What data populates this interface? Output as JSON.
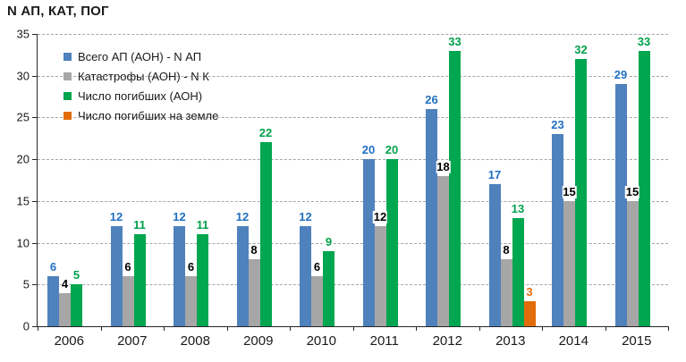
{
  "title": "N АП, КАТ, ПОГ",
  "legend": {
    "position": "upper-left-inside",
    "items": [
      {
        "label": "Всего АП (АОН) - N АП",
        "color": "#4F81BD"
      },
      {
        "label": "Катастрофы (АОН) - N К",
        "color": "#A6A6A6"
      },
      {
        "label": "Число погибших (АОН)",
        "color": "#00A650"
      },
      {
        "label": "Число погибших на земле",
        "color": "#E36C0A"
      }
    ]
  },
  "chart_data": {
    "type": "bar",
    "title": "N АП, КАТ, ПОГ",
    "categories": [
      "2006",
      "2007",
      "2008",
      "2009",
      "2010",
      "2011",
      "2012",
      "2013",
      "2014",
      "2015"
    ],
    "series": [
      {
        "name": "Всего АП (АОН) - N АП",
        "color": "#4F81BD",
        "label_color": "#1F6FC0",
        "values": [
          6,
          12,
          12,
          12,
          12,
          20,
          26,
          17,
          23,
          29
        ]
      },
      {
        "name": "Катастрофы (АОН) - N К",
        "color": "#A6A6A6",
        "label_color": "#000000",
        "values": [
          4,
          6,
          6,
          8,
          6,
          12,
          18,
          8,
          15,
          15
        ]
      },
      {
        "name": "Число погибших (АОН)",
        "color": "#00A650",
        "label_color": "#00A04A",
        "values": [
          5,
          11,
          11,
          22,
          9,
          20,
          33,
          13,
          32,
          33
        ]
      },
      {
        "name": "Число погибших на земле",
        "color": "#E36C0A",
        "label_color": "#E36C0A",
        "values": [
          null,
          null,
          null,
          null,
          null,
          null,
          null,
          3,
          null,
          null
        ]
      }
    ],
    "xlabel": "",
    "ylabel": "N АП, КАТ, ПОГ",
    "ylim": [
      0,
      35
    ],
    "yticks": [
      0,
      5,
      10,
      15,
      20,
      25,
      30,
      35
    ],
    "grid": "horizontal-dashed",
    "data_labels": true,
    "legend_position": "upper-left-inside"
  }
}
